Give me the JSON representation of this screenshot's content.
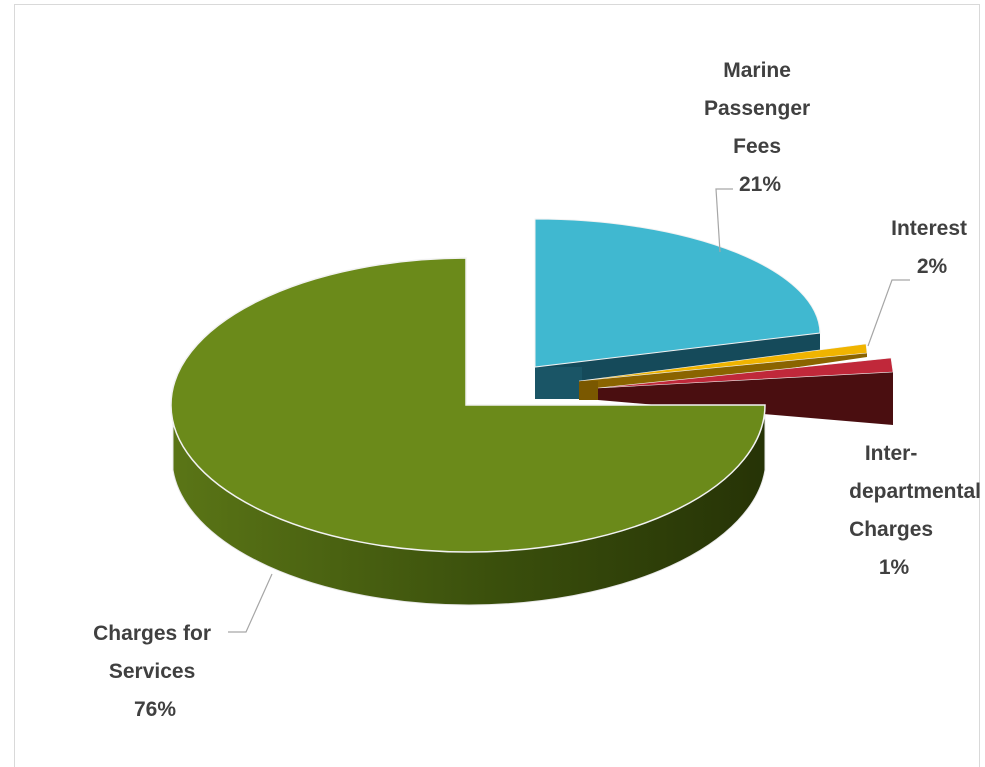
{
  "chart_data": {
    "type": "pie",
    "title": "",
    "style": "3d-exploded",
    "slices": [
      {
        "label": [
          "Marine",
          "Passenger",
          "Fees"
        ],
        "percent_label": "21%",
        "value": 21,
        "color": "#40b8d0"
      },
      {
        "label": [
          "Interest"
        ],
        "percent_label": "2%",
        "value": 2,
        "color": "#f0b400"
      },
      {
        "label": [
          "Inter-",
          "departmental",
          "Charges"
        ],
        "percent_label": "1%",
        "value": 1,
        "color": "#c0283a"
      },
      {
        "label": [
          "Charges for",
          "Services"
        ],
        "percent_label": "76%",
        "value": 76,
        "color": "#6b8a1a"
      }
    ],
    "legend": "none",
    "data_labels": "outside-with-leader-lines"
  }
}
